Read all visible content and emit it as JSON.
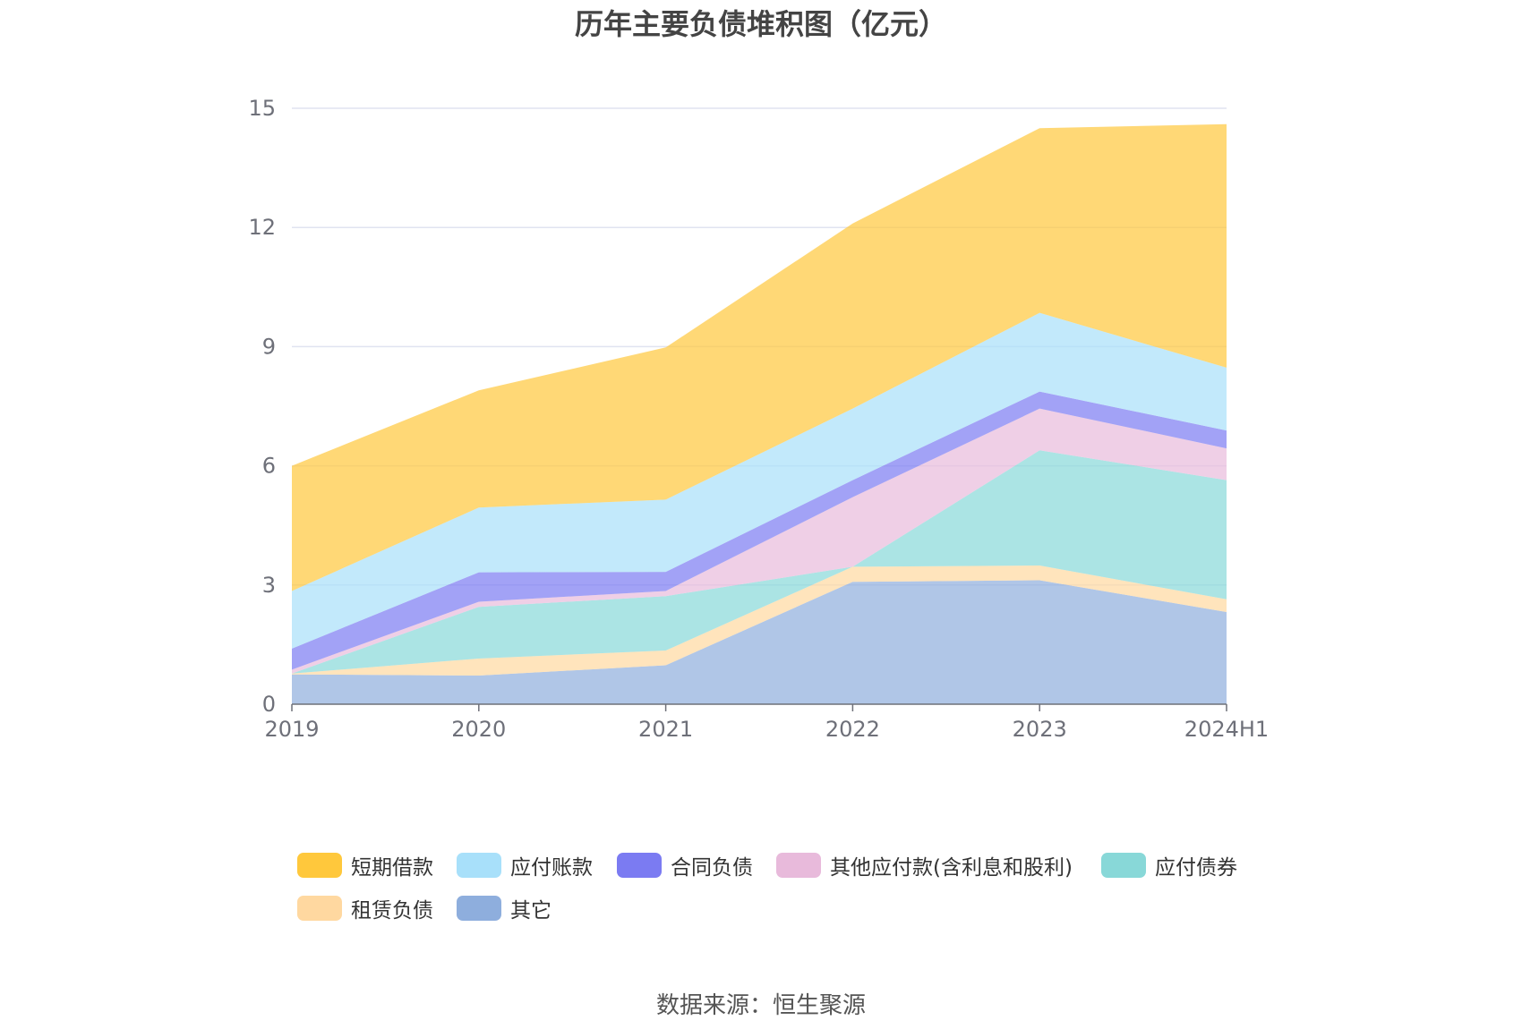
{
  "source_text": "数据来源：恒生聚源",
  "chart_data": {
    "type": "area",
    "stacked": true,
    "title": "历年主要负债堆积图（亿元）",
    "xlabel": "",
    "ylabel": "",
    "categories": [
      "2019",
      "2020",
      "2021",
      "2022",
      "2023",
      "2024H1"
    ],
    "ylim": [
      0,
      15
    ],
    "yticks": [
      "0",
      "3",
      "6",
      "9",
      "12",
      "15"
    ],
    "grid": true,
    "legend_position": "bottom",
    "series": [
      {
        "name": "其它",
        "color": "#8EAEDD",
        "values": [
          0.75,
          0.72,
          0.98,
          3.08,
          3.12,
          2.32
        ]
      },
      {
        "name": "租赁负债",
        "color": "#FFD8A0",
        "values": [
          0.02,
          0.43,
          0.37,
          0.38,
          0.37,
          0.32
        ]
      },
      {
        "name": "应付债券",
        "color": "#88D8D8",
        "values": [
          0.0,
          1.3,
          1.37,
          0.0,
          2.9,
          3.0
        ]
      },
      {
        "name": "其他应付款(含利息和股利)",
        "color": "#E8BADB",
        "values": [
          0.1,
          0.13,
          0.13,
          1.75,
          1.05,
          0.8
        ]
      },
      {
        "name": "合同负债",
        "color": "#7B7BF2",
        "values": [
          0.53,
          0.74,
          0.48,
          0.43,
          0.43,
          0.45
        ]
      },
      {
        "name": "应付账款",
        "color": "#A8E0FA",
        "values": [
          1.45,
          1.63,
          1.82,
          1.8,
          1.98,
          1.58
        ]
      },
      {
        "name": "短期借款",
        "color": "#FFC83C",
        "values": [
          3.15,
          2.95,
          3.83,
          4.66,
          4.65,
          6.13
        ]
      }
    ],
    "legend_order": [
      "短期借款",
      "应付账款",
      "合同负债",
      "其他应付款(含利息和股利)",
      "应付债券",
      "租赁负债",
      "其它"
    ]
  }
}
